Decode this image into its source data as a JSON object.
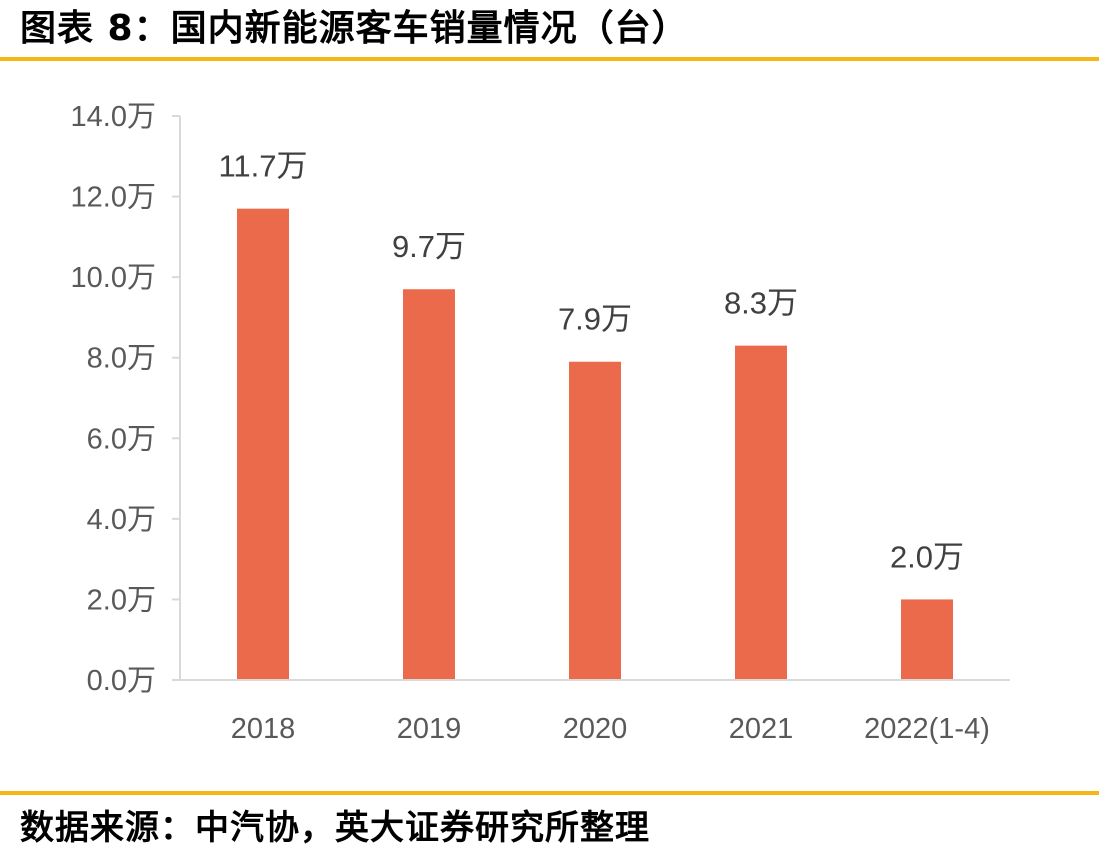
{
  "header": {
    "title": "图表 8：国内新能源客车销量情况（台）"
  },
  "footer": {
    "source": "数据来源：中汽协，英大证券研究所整理"
  },
  "colors": {
    "bar": "#ec6a4c",
    "rule": "#f5b716",
    "axis": "#d9d9d9"
  },
  "chart_data": {
    "type": "bar",
    "title": "",
    "xlabel": "",
    "ylabel": "",
    "categories": [
      "2018",
      "2019",
      "2020",
      "2021",
      "2022(1-4)"
    ],
    "values": [
      11.7,
      9.7,
      7.9,
      8.3,
      2.0
    ],
    "data_labels": [
      "11.7万",
      "9.7万",
      "7.9万",
      "8.3万",
      "2.0万"
    ],
    "ylim": [
      0,
      14
    ],
    "yticks": [
      0,
      2,
      4,
      6,
      8,
      10,
      12,
      14
    ],
    "ytick_labels": [
      "0.0万",
      "2.0万",
      "4.0万",
      "6.0万",
      "8.0万",
      "10.0万",
      "12.0万",
      "14.0万"
    ],
    "grid": false,
    "legend": "none"
  }
}
